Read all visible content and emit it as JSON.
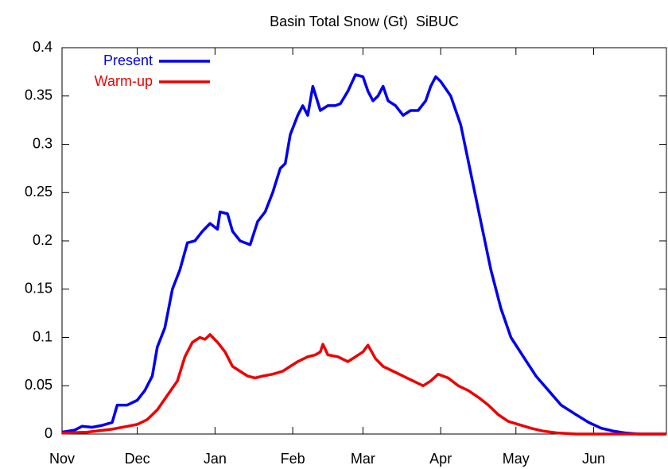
{
  "chart_data": {
    "type": "line",
    "title": "Basin Total Snow (Gt)  SiBUC",
    "xlim": [
      0,
      241
    ],
    "xticks": [
      {
        "value": 0,
        "label": "Nov"
      },
      {
        "value": 30,
        "label": "Dec"
      },
      {
        "value": 61,
        "label": "Jan"
      },
      {
        "value": 92,
        "label": "Feb"
      },
      {
        "value": 120,
        "label": "Mar"
      },
      {
        "value": 151,
        "label": "Apr"
      },
      {
        "value": 181,
        "label": "May"
      },
      {
        "value": 212,
        "label": "Jun"
      }
    ],
    "ylim": [
      0,
      0.4
    ],
    "yticks": [
      0,
      0.05,
      0.1,
      0.15,
      0.2,
      0.25,
      0.3,
      0.35,
      0.4
    ],
    "legend": "top-left",
    "series": [
      {
        "name": "Present",
        "color": "#0000ee",
        "x": [
          0,
          5,
          8,
          12,
          16,
          20,
          22,
          26,
          30,
          33,
          36,
          38,
          41,
          44,
          47,
          50,
          53,
          56,
          59,
          62,
          63,
          66,
          68,
          71,
          75,
          78,
          81,
          84,
          87,
          89,
          91,
          94,
          96,
          98,
          100,
          103,
          106,
          109,
          111,
          114,
          117,
          120,
          122,
          124,
          126,
          128,
          130,
          133,
          136,
          139,
          142,
          145,
          147,
          149,
          151,
          155,
          159,
          163,
          167,
          171,
          175,
          179,
          184,
          189,
          194,
          199,
          205,
          210,
          215,
          220,
          225,
          230,
          241
        ],
        "values": [
          0.002,
          0.004,
          0.008,
          0.007,
          0.009,
          0.012,
          0.03,
          0.03,
          0.035,
          0.045,
          0.06,
          0.09,
          0.11,
          0.15,
          0.17,
          0.198,
          0.2,
          0.21,
          0.218,
          0.212,
          0.23,
          0.228,
          0.21,
          0.2,
          0.196,
          0.22,
          0.23,
          0.25,
          0.275,
          0.28,
          0.31,
          0.33,
          0.34,
          0.33,
          0.36,
          0.335,
          0.34,
          0.34,
          0.342,
          0.355,
          0.372,
          0.37,
          0.355,
          0.345,
          0.35,
          0.36,
          0.345,
          0.34,
          0.33,
          0.335,
          0.335,
          0.345,
          0.36,
          0.37,
          0.365,
          0.35,
          0.32,
          0.27,
          0.22,
          0.17,
          0.13,
          0.1,
          0.08,
          0.06,
          0.045,
          0.03,
          0.02,
          0.012,
          0.006,
          0.003,
          0.001,
          0,
          0
        ]
      },
      {
        "name": "Warm-up",
        "color": "#ee0000",
        "x": [
          0,
          10,
          20,
          26,
          30,
          34,
          38,
          42,
          46,
          49,
          52,
          55,
          57,
          59,
          62,
          65,
          68,
          71,
          74,
          77,
          80,
          84,
          88,
          91,
          94,
          98,
          101,
          103,
          104,
          106,
          110,
          114,
          117,
          120,
          122,
          125,
          128,
          132,
          136,
          140,
          144,
          147,
          150,
          154,
          158,
          162,
          166,
          170,
          174,
          178,
          182,
          187,
          192,
          198,
          205,
          241
        ],
        "values": [
          0.001,
          0.002,
          0.005,
          0.008,
          0.01,
          0.015,
          0.025,
          0.04,
          0.055,
          0.08,
          0.095,
          0.1,
          0.098,
          0.103,
          0.095,
          0.085,
          0.07,
          0.065,
          0.06,
          0.058,
          0.06,
          0.062,
          0.065,
          0.07,
          0.075,
          0.08,
          0.082,
          0.085,
          0.093,
          0.082,
          0.08,
          0.075,
          0.08,
          0.085,
          0.092,
          0.078,
          0.07,
          0.065,
          0.06,
          0.055,
          0.05,
          0.055,
          0.062,
          0.058,
          0.05,
          0.045,
          0.038,
          0.03,
          0.02,
          0.013,
          0.01,
          0.006,
          0.003,
          0.001,
          0,
          0
        ]
      }
    ]
  }
}
